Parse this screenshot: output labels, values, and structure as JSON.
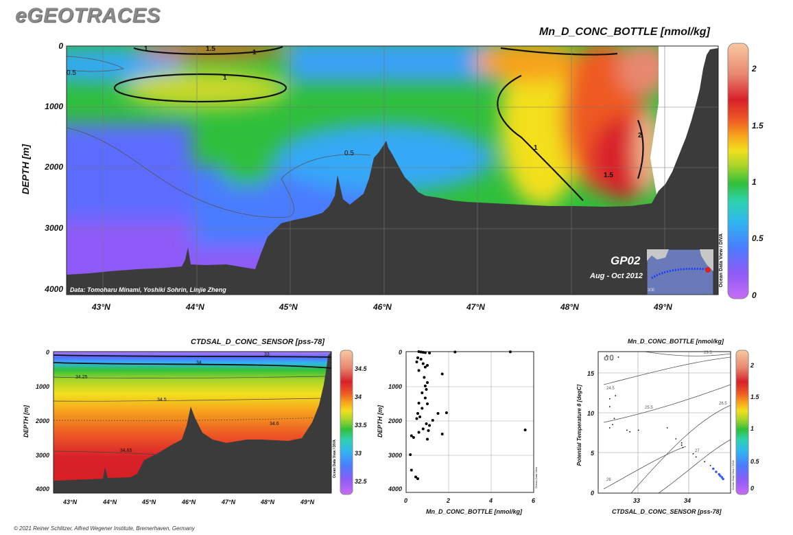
{
  "brand": "eGEOTRACES",
  "footer": "© 2021 Reiner Schlitzer, Alfred Wegener Institute, Bremerhaven, Germany",
  "odv_tag": "Ocean Data View / DIVA",
  "odv_tag_short": "Ocean Data View",
  "colors": {
    "land": "#3b3b3b",
    "colormap": [
      "#c66cf5",
      "#9a5cf7",
      "#5b6cff",
      "#35a8f6",
      "#2bd2b8",
      "#2fbf3c",
      "#a8d52a",
      "#f3df1e",
      "#f6a21c",
      "#ee5a24",
      "#d8202a",
      "#e27a6a",
      "#f3b48a",
      "#f9c9a0"
    ]
  },
  "main": {
    "title": "Mn_D_CONC_BOTTLE [nmol/kg]",
    "ylabel": "DEPTH [m]",
    "section_label": "GP02",
    "cruise_dates": "Aug - Oct 2012",
    "credits": "Data: Tomoharu Minami, Yoshiki Sohrin, Linjie Zheng",
    "inset_label": "30E",
    "y_ticks": [
      "0",
      "1000",
      "2000",
      "3000",
      "4000"
    ],
    "x_ticks": [
      "43°N",
      "44°N",
      "45°N",
      "46°N",
      "47°N",
      "48°N",
      "49°N"
    ],
    "colorbar_ticks": [
      "2",
      "1.5",
      "1",
      "0.5",
      "0"
    ],
    "contour_labels": [
      "1",
      "1.5",
      "1",
      "1",
      "0.5",
      "0.5",
      "1",
      "2",
      "1.5"
    ]
  },
  "salinity": {
    "title": "CTDSAL_D_CONC_SENSOR [pss-78]",
    "ylabel": "DEPTH [m]",
    "y_ticks": [
      "0",
      "1000",
      "2000",
      "3000",
      "4000"
    ],
    "x_ticks": [
      "43°N",
      "44°N",
      "45°N",
      "46°N",
      "47°N",
      "48°N",
      "49°N"
    ],
    "colorbar_ticks": [
      "34.5",
      "34",
      "33.5",
      "33",
      "32.5"
    ],
    "contour_labels": [
      "33",
      "34",
      "34.25",
      "34.5",
      "34.6",
      "34.65"
    ]
  },
  "chart_data": [
    {
      "type": "heatmap",
      "title": "Mn_D_CONC_BOTTLE [nmol/kg]",
      "xlabel": "",
      "ylabel": "DEPTH [m]",
      "x_range": [
        42.6,
        49.6
      ],
      "ylim": [
        4100,
        0
      ],
      "colorbar_range": [
        0,
        2.2
      ],
      "colorbar_ticks": [
        0,
        0.5,
        1,
        1.5,
        2
      ],
      "note_values": [
        {
          "lat": 44.2,
          "depth": 10,
          "value": 1.6
        },
        {
          "lat": 44.3,
          "depth": 650,
          "value": 1.05
        },
        {
          "lat": 43.0,
          "depth": 300,
          "value": 0.55
        },
        {
          "lat": 44.5,
          "depth": 2000,
          "value": 0.75
        },
        {
          "lat": 43.0,
          "depth": 3300,
          "value": 0.2
        },
        {
          "lat": 47.8,
          "depth": 600,
          "value": 1.3
        },
        {
          "lat": 48.4,
          "depth": 1200,
          "value": 1.75
        },
        {
          "lat": 48.6,
          "depth": 2250,
          "value": 1.9
        },
        {
          "lat": 48.9,
          "depth": 900,
          "value": 2.1
        }
      ]
    },
    {
      "type": "heatmap",
      "title": "CTDSAL_D_CONC_SENSOR [pss-78]",
      "xlabel": "",
      "ylabel": "DEPTH [m]",
      "x_range": [
        42.6,
        49.6
      ],
      "ylim": [
        4100,
        0
      ],
      "colorbar_range": [
        32.3,
        34.7
      ],
      "colorbar_ticks": [
        32.5,
        33,
        33.5,
        34,
        34.5
      ],
      "contour_levels": [
        33,
        34,
        34.25,
        34.5,
        34.6,
        34.65
      ]
    },
    {
      "type": "scatter",
      "xlabel": "Mn_D_CONC_BOTTLE [nmol/kg]",
      "ylabel": "DEPTH [m]",
      "xlim": [
        0,
        6
      ],
      "ylim": [
        4100,
        0
      ],
      "x_ticks": [
        0,
        2,
        4,
        6
      ],
      "y_ticks": [
        0,
        1000,
        2000,
        3000,
        4000
      ],
      "points": [
        [
          0.6,
          0
        ],
        [
          0.7,
          10
        ],
        [
          0.8,
          20
        ],
        [
          0.9,
          30
        ],
        [
          1.1,
          40
        ],
        [
          2.3,
          10
        ],
        [
          4.9,
          5
        ],
        [
          0.55,
          180
        ],
        [
          0.7,
          220
        ],
        [
          0.5,
          300
        ],
        [
          0.8,
          350
        ],
        [
          1.0,
          400
        ],
        [
          0.9,
          450
        ],
        [
          0.6,
          550
        ],
        [
          0.85,
          750
        ],
        [
          1.0,
          900
        ],
        [
          0.9,
          1000
        ],
        [
          0.95,
          1100
        ],
        [
          0.75,
          1200
        ],
        [
          0.9,
          1350
        ],
        [
          0.6,
          1500
        ],
        [
          1.0,
          1520
        ],
        [
          0.75,
          1650
        ],
        [
          0.55,
          1800
        ],
        [
          1.5,
          1800
        ],
        [
          1.9,
          1780
        ],
        [
          0.65,
          1900
        ],
        [
          0.5,
          1950
        ],
        [
          1.25,
          2000
        ],
        [
          0.95,
          2100
        ],
        [
          1.1,
          2150
        ],
        [
          0.8,
          2250
        ],
        [
          1.05,
          2300
        ],
        [
          0.6,
          2350
        ],
        [
          1.7,
          2400
        ],
        [
          0.25,
          2450
        ],
        [
          0.35,
          2500
        ],
        [
          1.0,
          2550
        ],
        [
          5.6,
          2280
        ],
        [
          1.7,
          650
        ],
        [
          0.2,
          3000
        ],
        [
          0.25,
          3450
        ],
        [
          0.45,
          3650
        ],
        [
          0.55,
          3700
        ]
      ]
    },
    {
      "type": "scatter",
      "title": "Mn_D_CONC_BOTTLE [nmol/kg]",
      "xlabel": "CTDSAL_D_CONC_SENSOR [pss-78]",
      "ylabel": "Potential Temperature θ [degC]",
      "xlim": [
        32.5,
        34.8
      ],
      "ylim": [
        -0.5,
        17.5
      ],
      "x_ticks": [
        33,
        34
      ],
      "y_ticks": [
        0,
        5,
        10,
        15
      ],
      "isopycnal_label": "σ0",
      "isopycnals": [
        "23.5",
        "24.5",
        "25.5",
        "26.5",
        "27",
        "26"
      ],
      "colorbar_ticks": [
        0,
        0.5,
        1,
        1.5,
        2
      ],
      "points": [
        [
          32.65,
          17.0
        ],
        [
          32.75,
          16.5
        ],
        [
          32.85,
          16.8
        ],
        [
          32.7,
          11.5
        ],
        [
          32.8,
          11.9
        ],
        [
          32.7,
          10.5
        ],
        [
          32.78,
          9.0
        ],
        [
          32.75,
          8.2
        ],
        [
          32.7,
          7.8
        ],
        [
          33.0,
          7.5
        ],
        [
          33.05,
          7.3
        ],
        [
          33.2,
          7.5
        ],
        [
          33.7,
          7.8
        ],
        [
          33.85,
          6.4
        ],
        [
          33.95,
          5.9
        ],
        [
          33.95,
          5.6
        ],
        [
          33.97,
          5.3
        ],
        [
          34.15,
          4.5
        ],
        [
          34.2,
          4.1
        ],
        [
          34.35,
          3.5
        ],
        [
          34.45,
          3.0
        ],
        [
          34.5,
          2.6
        ],
        [
          34.55,
          2.2
        ],
        [
          34.6,
          1.9
        ],
        [
          34.62,
          1.7
        ],
        [
          34.65,
          1.5
        ],
        [
          34.67,
          1.3
        ]
      ]
    }
  ]
}
